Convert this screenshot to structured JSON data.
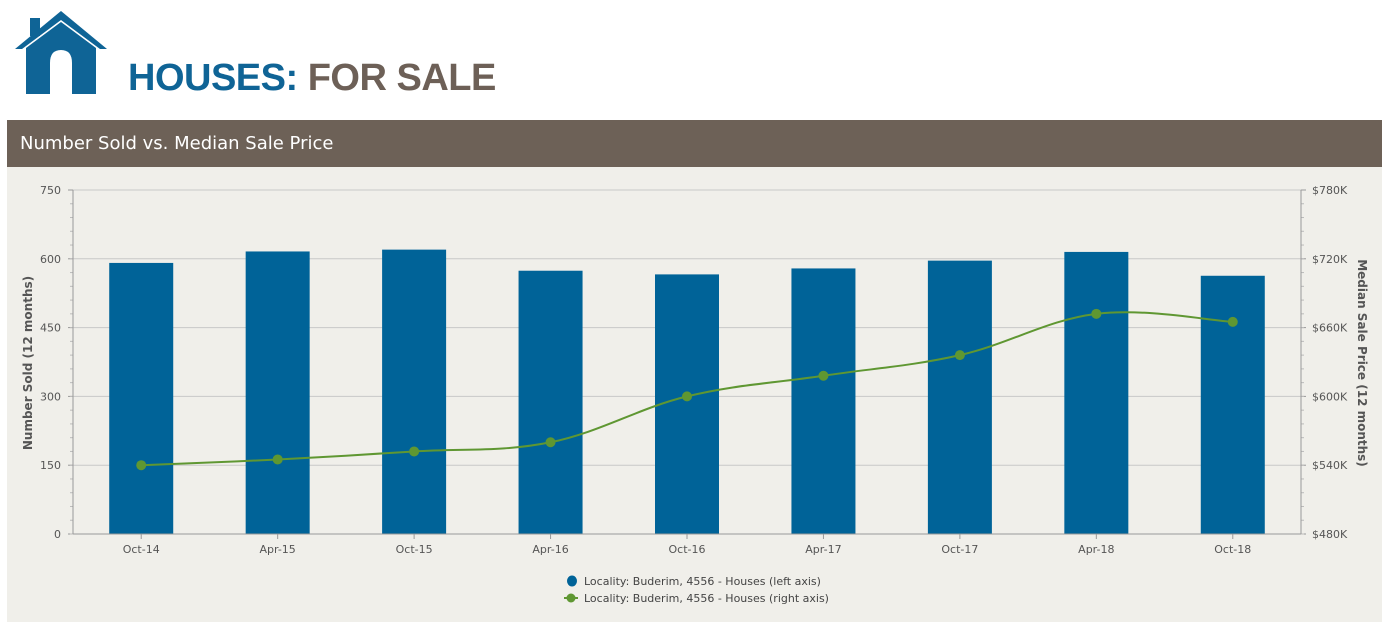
{
  "header": {
    "title_part1": "HOUSES:",
    "title_part2": "FOR SALE",
    "logo_icon": "house-icon"
  },
  "panel": {
    "title": "Number Sold vs. Median Sale Price"
  },
  "chart_data": {
    "type": "bar+line",
    "title": "Number Sold vs. Median Sale Price",
    "categories": [
      "Oct-14",
      "Apr-15",
      "Oct-15",
      "Apr-16",
      "Oct-16",
      "Apr-17",
      "Oct-17",
      "Apr-18",
      "Oct-18"
    ],
    "series": [
      {
        "name": "Locality: Buderim, 4556 - Houses (left axis)",
        "type": "bar",
        "axis": "left",
        "color": "#006398",
        "values": [
          591,
          616,
          620,
          574,
          566,
          579,
          596,
          615,
          563
        ]
      },
      {
        "name": "Locality: Buderim, 4556 - Houses (right axis)",
        "type": "line",
        "axis": "right",
        "color": "#5f9732",
        "values": [
          540000,
          545000,
          552000,
          560000,
          600000,
          618000,
          636000,
          672000,
          665000
        ]
      }
    ],
    "ylabel_left": "Number Sold (12 months)",
    "ylabel_right": "Median Sale Price (12 months)",
    "ylim_left": [
      0,
      750
    ],
    "ylim_right": [
      480000,
      780000
    ],
    "yticks_left": [
      "0",
      "150",
      "300",
      "450",
      "600",
      "750"
    ],
    "yticks_right": [
      "$480K",
      "$540K",
      "$600K",
      "$660K",
      "$720K",
      "$780K"
    ],
    "grid": true,
    "legend_position": "bottom-center"
  }
}
